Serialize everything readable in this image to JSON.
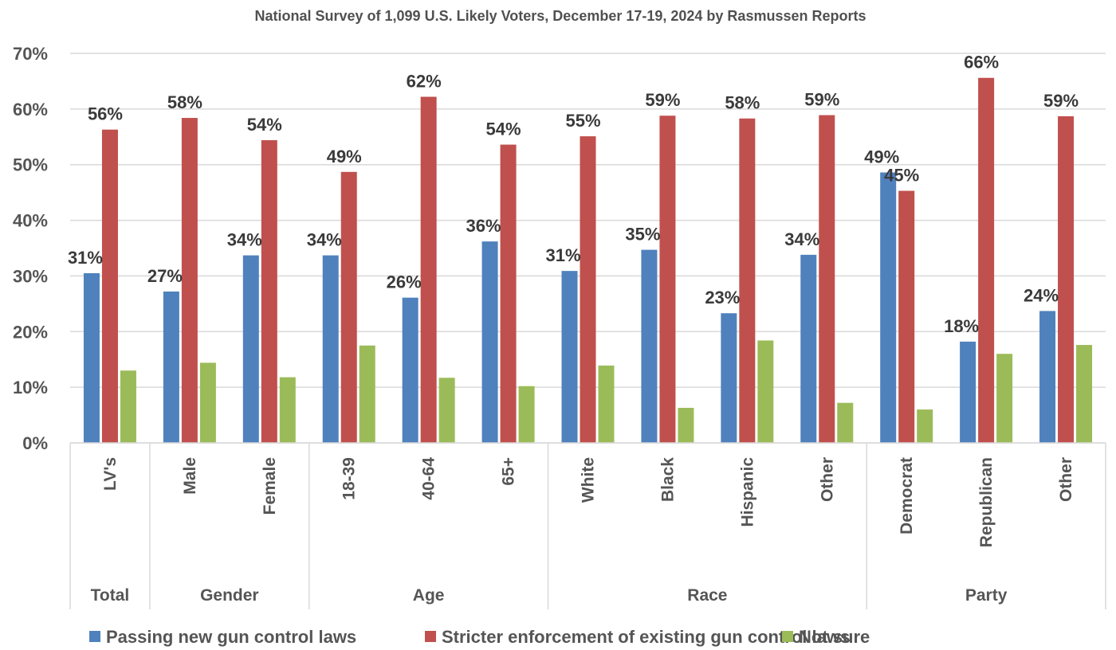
{
  "chart_data": {
    "type": "bar",
    "title": "National Survey of 1,099 U.S. Likely Voters, December 17-19, 2024 by Rasmussen Reports",
    "xlabel": "",
    "ylabel": "",
    "ylim": [
      0,
      70
    ],
    "yticks": [
      "0%",
      "10%",
      "20%",
      "30%",
      "40%",
      "50%",
      "60%",
      "70%"
    ],
    "grid": true,
    "legend_position": "bottom",
    "categories": [
      "LV's",
      "Male",
      "Female",
      "18-39",
      "40-64",
      "65+",
      "White",
      "Black",
      "Hispanic",
      "Other",
      "Democrat",
      "Republican",
      "Other"
    ],
    "groups": [
      {
        "label": "Total",
        "count": 1
      },
      {
        "label": "Gender",
        "count": 2
      },
      {
        "label": "Age",
        "count": 3
      },
      {
        "label": "Race",
        "count": 4
      },
      {
        "label": "Party",
        "count": 3
      }
    ],
    "series": [
      {
        "name": "Passing new gun control laws",
        "color": "#4f81bd",
        "values": [
          30.5,
          27.2,
          33.7,
          33.7,
          26.1,
          36.2,
          30.9,
          34.7,
          23.3,
          33.8,
          48.6,
          18.2,
          23.7
        ],
        "labels": [
          "31%",
          "27%",
          "34%",
          "34%",
          "26%",
          "36%",
          "31%",
          "35%",
          "23%",
          "34%",
          "49%",
          "18%",
          "24%"
        ]
      },
      {
        "name": "Stricter enforcement of existing gun control laws",
        "color": "#c0504d",
        "values": [
          56.3,
          58.4,
          54.4,
          48.7,
          62.2,
          53.6,
          55.1,
          58.8,
          58.3,
          58.9,
          45.3,
          65.6,
          58.7
        ],
        "labels": [
          "56%",
          "58%",
          "54%",
          "49%",
          "62%",
          "54%",
          "55%",
          "59%",
          "58%",
          "59%",
          "45%",
          "66%",
          "59%"
        ]
      },
      {
        "name": "Not sure",
        "color": "#9bbb59",
        "values": [
          13.0,
          14.4,
          11.8,
          17.5,
          11.7,
          10.2,
          13.9,
          6.3,
          18.4,
          7.2,
          6.0,
          16.0,
          17.6
        ],
        "labels": []
      }
    ]
  }
}
